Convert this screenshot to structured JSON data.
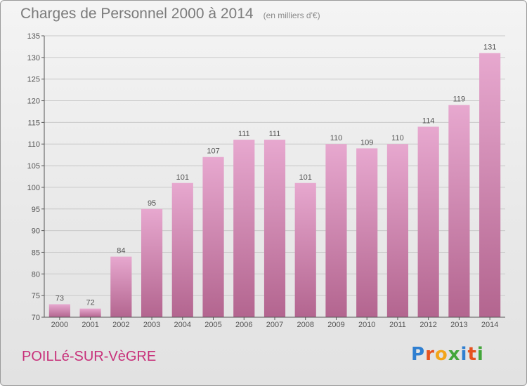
{
  "header": {
    "title": "Charges de Personnel 2000 à 2014",
    "subtitle": "(en milliers d'€)"
  },
  "footer": {
    "commune": "POILLé-SUR-VèGRE",
    "logo_letters": [
      {
        "ch": "P",
        "color": "#2f7fd1"
      },
      {
        "ch": "r",
        "color": "#e6521f"
      },
      {
        "ch": "o",
        "color": "#f2a51a"
      },
      {
        "ch": "x",
        "color": "#43a63a"
      },
      {
        "ch": "i",
        "color": "#2f7fd1"
      },
      {
        "ch": "t",
        "color": "#e6521f"
      },
      {
        "ch": "i",
        "color": "#43a63a"
      }
    ]
  },
  "colors": {
    "bar_top": "#e7a8cf",
    "bar_bottom": "#b3658f",
    "grid": "#c8c8c8",
    "axis": "#555555",
    "commune": "#c8307a"
  },
  "chart_data": {
    "type": "bar",
    "title": "Charges de Personnel 2000 à 2014",
    "subtitle": "(en milliers d'€)",
    "categories": [
      "2000",
      "2001",
      "2002",
      "2003",
      "2004",
      "2005",
      "2006",
      "2007",
      "2008",
      "2009",
      "2010",
      "2011",
      "2012",
      "2013",
      "2014"
    ],
    "values": [
      73,
      72,
      84,
      95,
      101,
      107,
      111,
      111,
      101,
      110,
      109,
      110,
      114,
      119,
      131
    ],
    "ylim": [
      70,
      135
    ],
    "yticks": [
      70,
      75,
      80,
      85,
      90,
      95,
      100,
      105,
      110,
      115,
      120,
      125,
      130,
      135
    ],
    "grid": true,
    "data_labels": true
  }
}
